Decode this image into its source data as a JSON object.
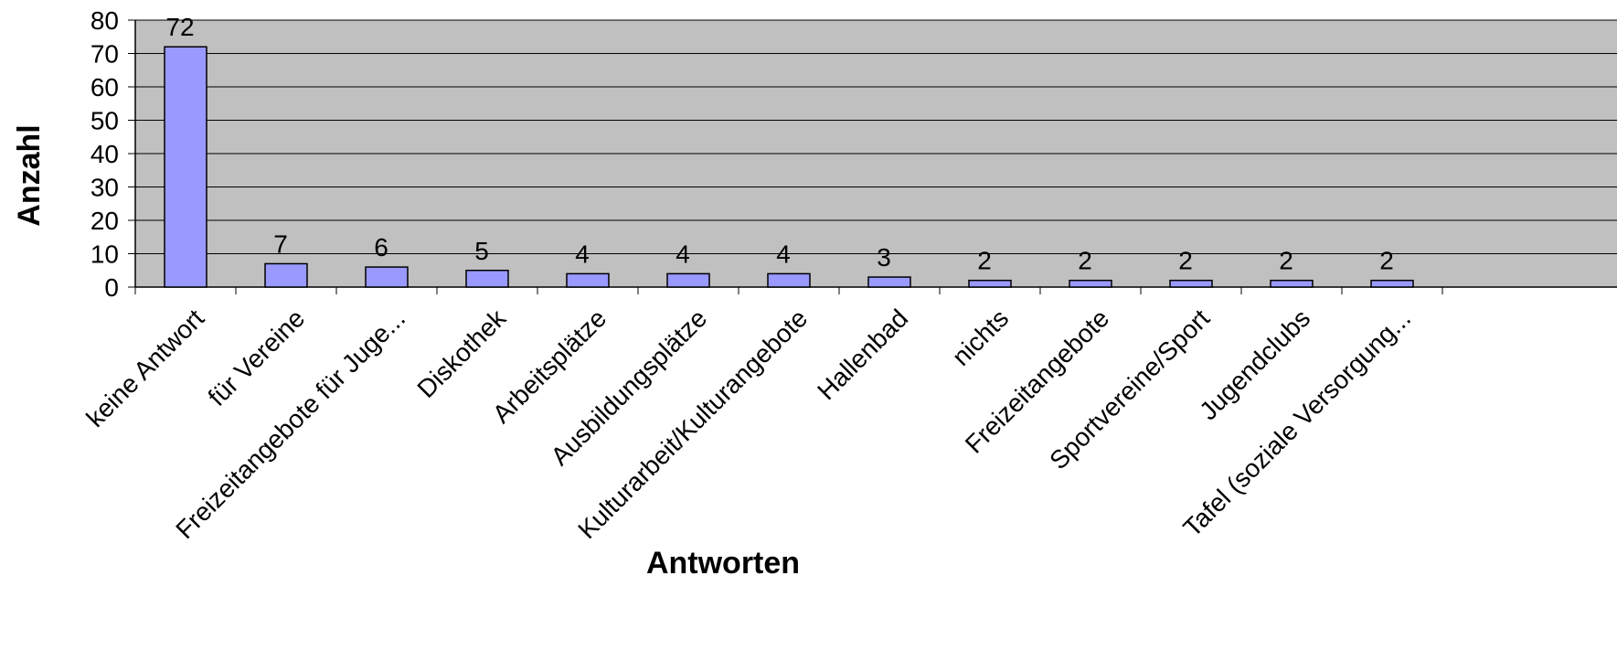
{
  "chart_data": {
    "type": "bar",
    "title": "",
    "xlabel": "Antworten",
    "ylabel": "Anzahl",
    "ylim": [
      0,
      80
    ],
    "yticks": [
      0,
      10,
      20,
      30,
      40,
      50,
      60,
      70,
      80
    ],
    "grid": true,
    "legend": "none",
    "categories": [
      "keine Antwort",
      "für Vereine",
      "Freizeitangebote für Juge...",
      "Diskothek",
      "Arbeitsplätze",
      "Ausbildungsplätze",
      "Kulturarbeit/Kulturangebote",
      "Hallenbad",
      "nichts",
      "Freizeitangebote",
      "Sportvereine/Sport",
      "Jugendclubs",
      "Tafel (soziale Versorgung..."
    ],
    "values": [
      72,
      7,
      6,
      5,
      4,
      4,
      4,
      3,
      2,
      2,
      2,
      2,
      2
    ],
    "colors": {
      "plot_background": "#c0c0c0",
      "bar_fill": "#9999ff",
      "bar_stroke": "#000000",
      "gridline": "#000000"
    }
  }
}
